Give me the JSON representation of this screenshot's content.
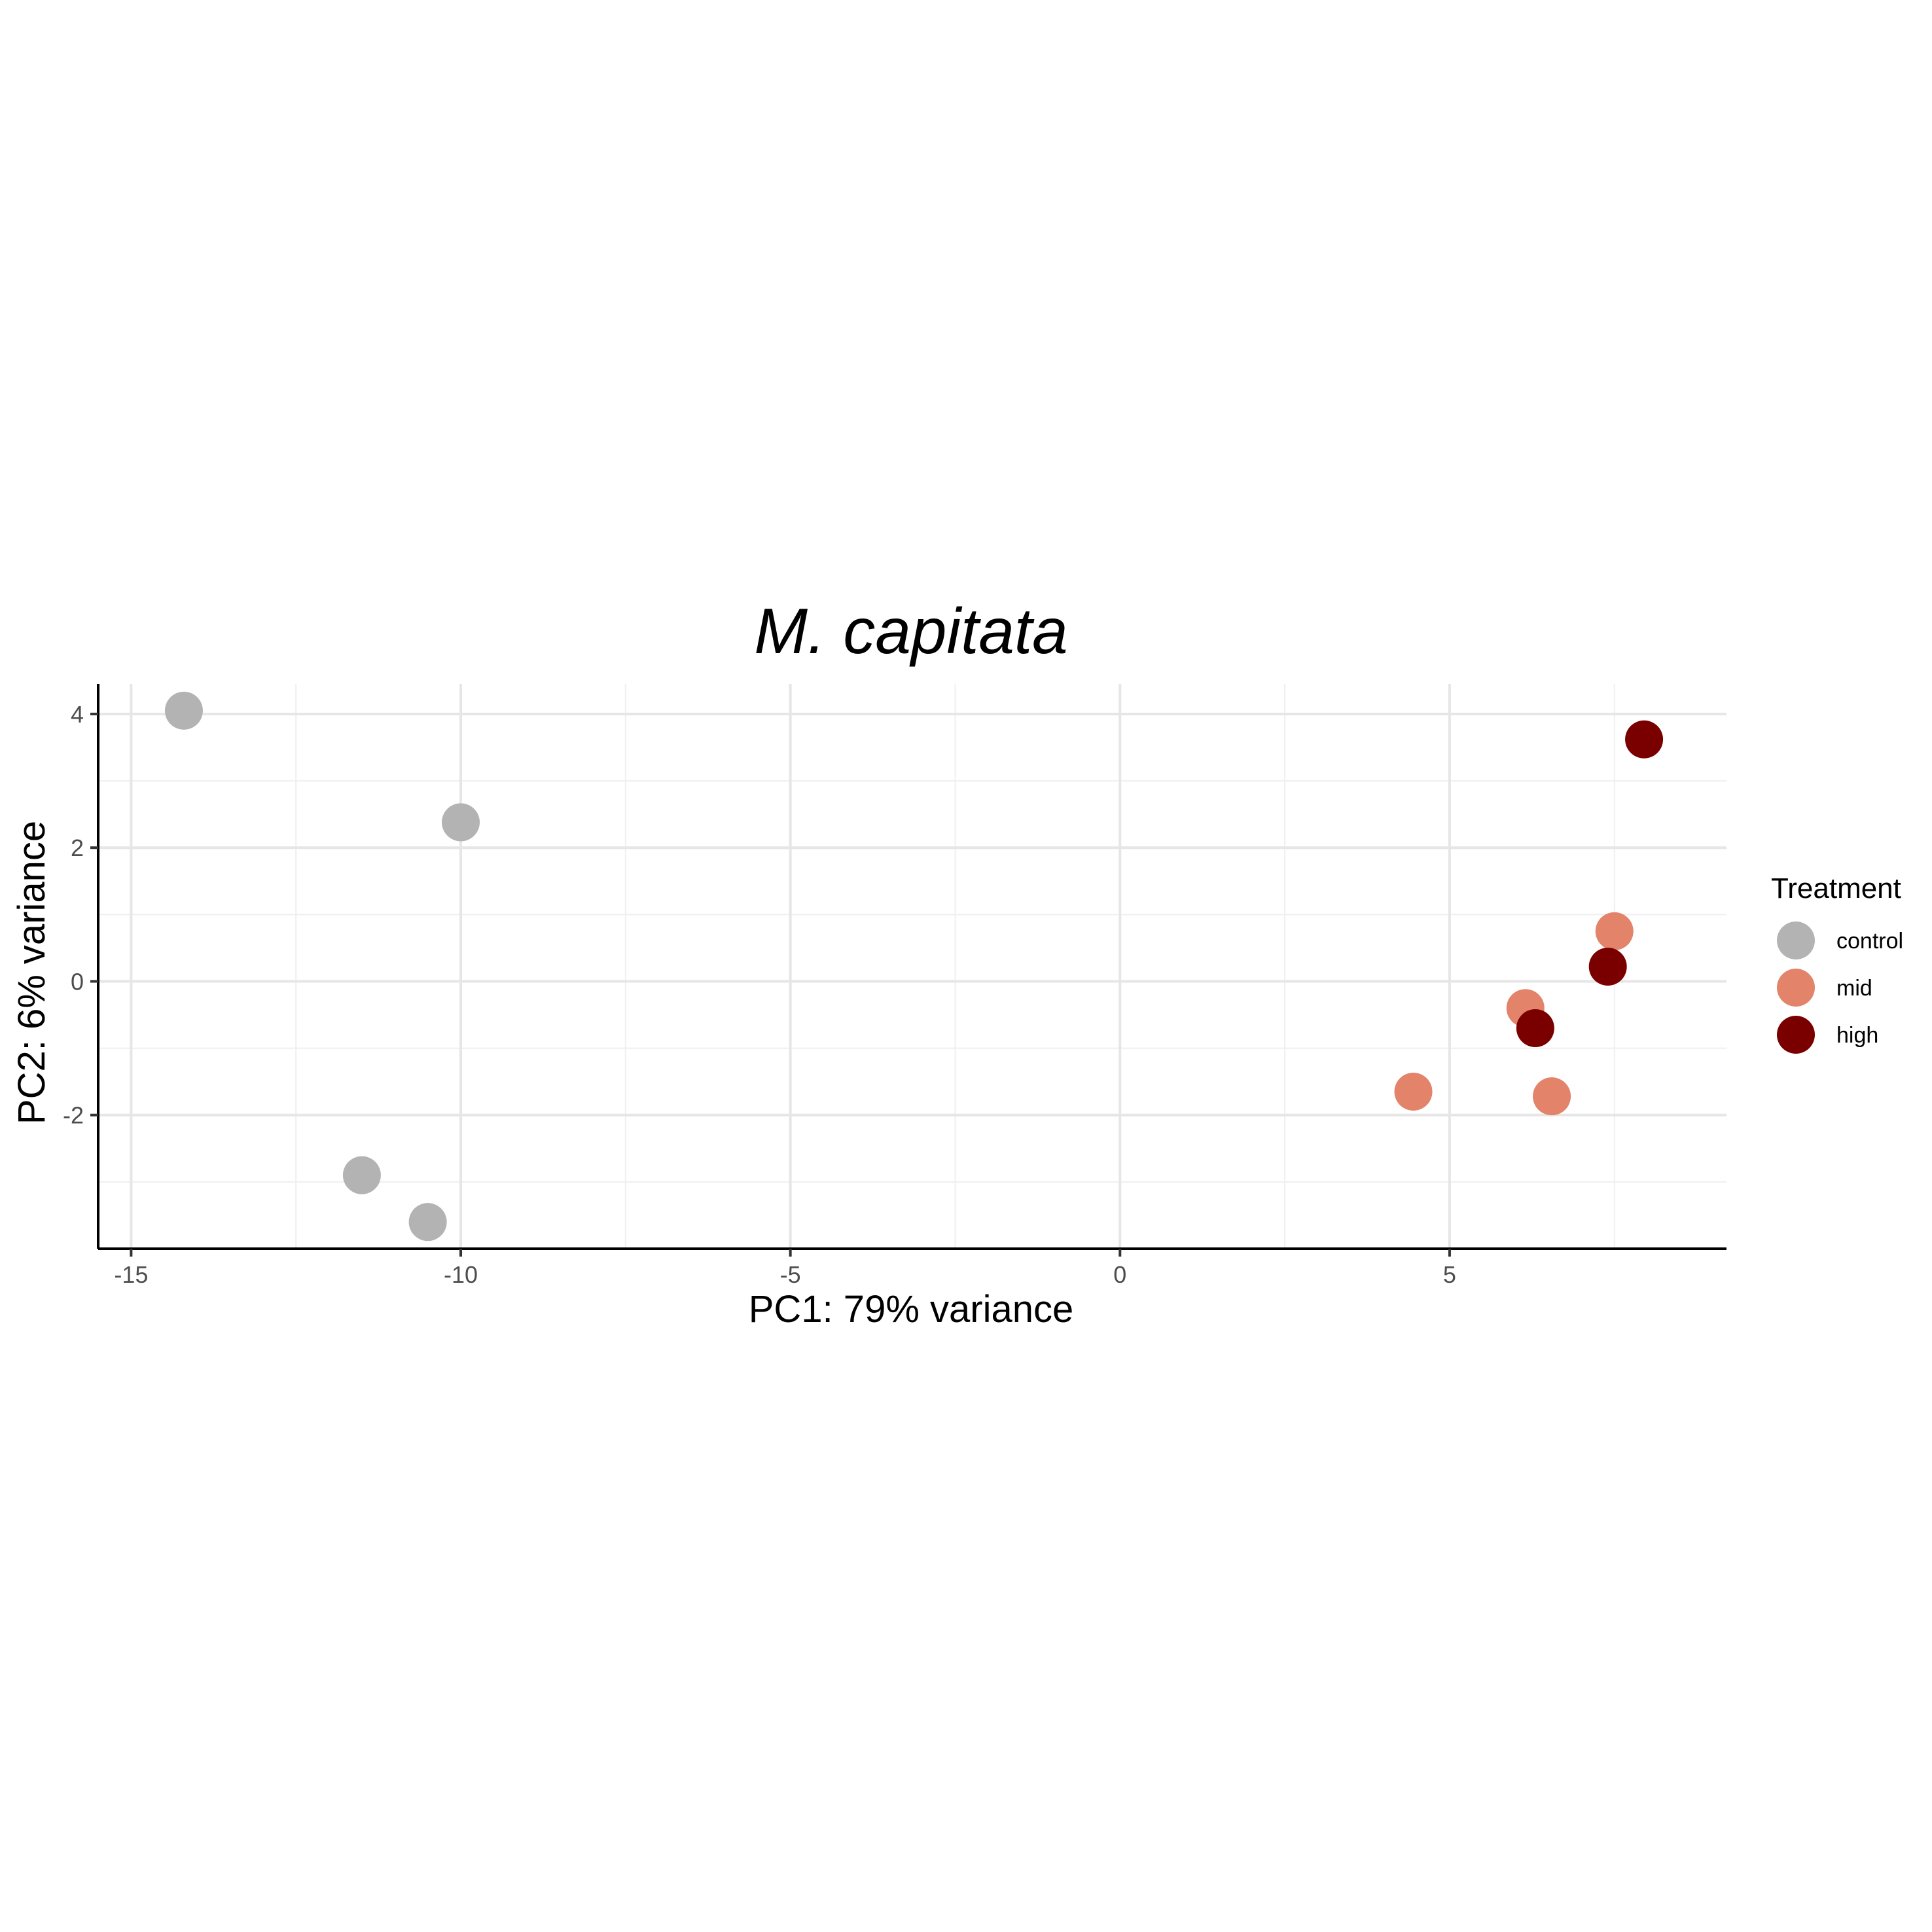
{
  "chart_data": {
    "type": "scatter",
    "title": "M. capitata",
    "xlabel": "PC1: 79% variance",
    "ylabel": "PC2: 6% variance",
    "xlim": [
      -15.5,
      9.2
    ],
    "ylim": [
      -4.0,
      4.45
    ],
    "x_ticks": [
      -15,
      -10,
      -5,
      0,
      5
    ],
    "x_tick_labels": [
      "-15",
      "-10",
      "-5",
      "0",
      "5"
    ],
    "y_ticks": [
      -2,
      0,
      2,
      4
    ],
    "y_tick_labels": [
      "-2",
      "0",
      "2",
      "4"
    ],
    "x_minor_ticks": [
      -12.5,
      -7.5,
      -2.5,
      2.5,
      7.5
    ],
    "y_minor_ticks": [
      -3,
      -1,
      1,
      3
    ],
    "grid": true,
    "legend": {
      "title": "Treatment",
      "position": "right"
    },
    "series": [
      {
        "name": "control",
        "color": "#b3b3b3",
        "points": [
          {
            "x": -14.2,
            "y": 4.05
          },
          {
            "x": -10.0,
            "y": 2.38
          },
          {
            "x": -11.5,
            "y": -2.9
          },
          {
            "x": -10.5,
            "y": -3.6
          }
        ]
      },
      {
        "name": "mid",
        "color": "#e2836a",
        "points": [
          {
            "x": 7.5,
            "y": 0.75
          },
          {
            "x": 6.15,
            "y": -0.4
          },
          {
            "x": 4.45,
            "y": -1.65
          },
          {
            "x": 6.55,
            "y": -1.72
          }
        ]
      },
      {
        "name": "high",
        "color": "#7a0000",
        "points": [
          {
            "x": 7.95,
            "y": 3.62
          },
          {
            "x": 7.4,
            "y": 0.22
          },
          {
            "x": 6.3,
            "y": -0.7
          }
        ]
      }
    ]
  }
}
